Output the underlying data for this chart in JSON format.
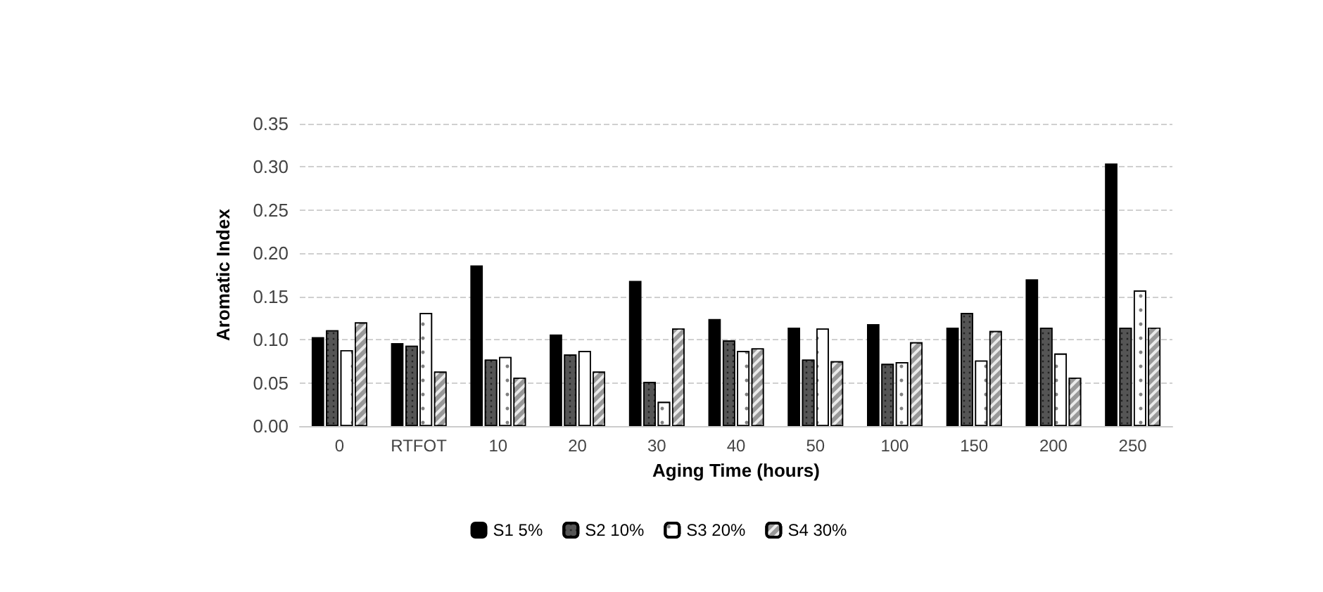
{
  "chart_data": {
    "type": "bar",
    "xlabel": "Aging Time (hours)",
    "ylabel": "Aromatic Index",
    "categories": [
      "0",
      "RTFOT",
      "10",
      "20",
      "30",
      "40",
      "50",
      "100",
      "150",
      "200",
      "250"
    ],
    "series": [
      {
        "name": "S1 5%",
        "color": "#000000",
        "values": [
          0.103,
          0.096,
          0.186,
          0.106,
          0.168,
          0.124,
          0.114,
          0.118,
          0.114,
          0.17,
          0.304
        ]
      },
      {
        "name": "S2 10%",
        "color": "#555555",
        "values": [
          0.111,
          0.093,
          0.077,
          0.083,
          0.051,
          0.099,
          0.077,
          0.072,
          0.131,
          0.114,
          0.114
        ]
      },
      {
        "name": "S3 20%",
        "color": "#ffffff",
        "values": [
          0.088,
          0.131,
          0.08,
          0.087,
          0.028,
          0.087,
          0.113,
          0.074,
          0.076,
          0.084,
          0.157
        ]
      },
      {
        "name": "S4 30%",
        "color": "#999999",
        "values": [
          0.12,
          0.063,
          0.056,
          0.063,
          0.113,
          0.09,
          0.075,
          0.097,
          0.11,
          0.056,
          0.114
        ]
      }
    ],
    "ylim": [
      0,
      0.35
    ],
    "yticks": [
      {
        "value": 0,
        "label": "0.00"
      },
      {
        "value": 0.05,
        "label": "0.05"
      },
      {
        "value": 0.1,
        "label": "0.10"
      },
      {
        "value": 0.15,
        "label": "0.15"
      },
      {
        "value": 0.2,
        "label": "0.20"
      },
      {
        "value": 0.25,
        "label": "0.25"
      },
      {
        "value": 0.3,
        "label": "0.30"
      },
      {
        "value": 0.35,
        "label": "0.35"
      }
    ],
    "grid": "y",
    "legend": "bottom"
  }
}
